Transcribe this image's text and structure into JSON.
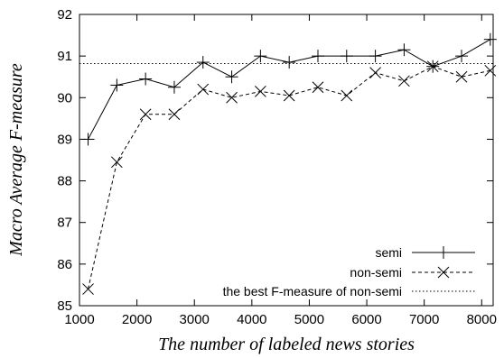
{
  "chart_data": {
    "type": "line",
    "xlabel": "The number of labeled news stories",
    "ylabel": "Macro Average F-measure",
    "xlim": [
      1000,
      8200
    ],
    "ylim": [
      85,
      92
    ],
    "xticks": [
      1000,
      2000,
      3000,
      4000,
      5000,
      6000,
      7000,
      8000
    ],
    "yticks": [
      85,
      86,
      87,
      88,
      89,
      90,
      91,
      92
    ],
    "grid": false,
    "legend_position": "bottom-right",
    "series": [
      {
        "name": "semi",
        "marker": "plus",
        "line_style": "solid",
        "x": [
          1150,
          1650,
          2150,
          2650,
          3150,
          3650,
          4150,
          4650,
          5150,
          5650,
          6150,
          6650,
          7150,
          7650,
          8150
        ],
        "y": [
          89.0,
          90.3,
          90.45,
          90.25,
          90.85,
          90.5,
          91.0,
          90.85,
          91.0,
          91.0,
          91.0,
          91.15,
          90.75,
          91.0,
          91.4
        ]
      },
      {
        "name": "non-semi",
        "marker": "cross",
        "line_style": "dashed",
        "x": [
          1150,
          1650,
          2150,
          2650,
          3150,
          3650,
          4150,
          4650,
          5150,
          5650,
          6150,
          6650,
          7150,
          7650,
          8150
        ],
        "y": [
          85.4,
          88.45,
          89.6,
          89.6,
          90.2,
          90.0,
          90.15,
          90.05,
          90.25,
          90.05,
          90.6,
          90.4,
          90.75,
          90.5,
          90.65
        ]
      },
      {
        "name": "the best F-measure of non-semi",
        "marker": "none",
        "line_style": "dotted",
        "constant_y": 90.82
      }
    ]
  }
}
